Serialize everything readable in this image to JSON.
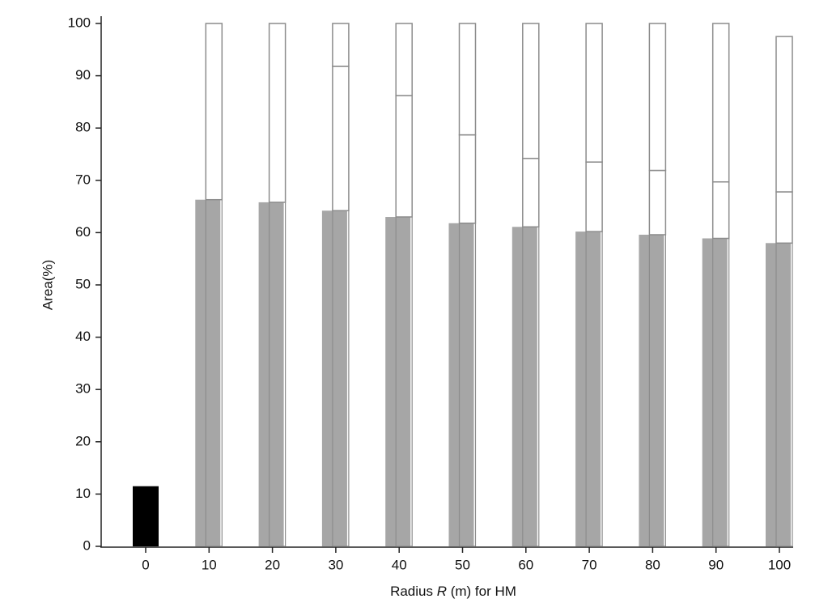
{
  "chart_data": {
    "type": "stacked-bar",
    "categories": [
      "0",
      "10",
      "20",
      "30",
      "40",
      "50",
      "60",
      "70",
      "80",
      "90",
      "100"
    ],
    "series": [
      {
        "colors": [
          "#000000",
          "#a6a6a6",
          "#a6a6a6",
          "#a6a6a6",
          "#a6a6a6",
          "#a6a6a6",
          "#a6a6a6",
          "#a6a6a6",
          "#a6a6a6",
          "#a6a6a6",
          "#a6a6a6"
        ],
        "values": [
          11.5,
          66.3,
          65.8,
          64.2,
          63.0,
          61.8,
          61.1,
          60.2,
          59.6,
          58.9,
          58.0
        ]
      },
      {
        "color": "#ffffff",
        "values": [
          null,
          33.7,
          34.2,
          27.6,
          23.2,
          16.9,
          13.1,
          13.3,
          12.3,
          10.8,
          9.8
        ]
      },
      {
        "color": "#ffffff",
        "values": [
          null,
          null,
          null,
          8.2,
          13.8,
          21.3,
          25.8,
          26.5,
          28.1,
          30.3,
          29.7
        ]
      }
    ],
    "ylabel": "Area(%)",
    "xlabel": [
      "Radius ",
      "R",
      " (m) for HM"
    ],
    "ylim": [
      0,
      100
    ],
    "yticks": [
      0,
      10,
      20,
      30,
      40,
      50,
      60,
      70,
      80,
      90,
      100
    ]
  }
}
